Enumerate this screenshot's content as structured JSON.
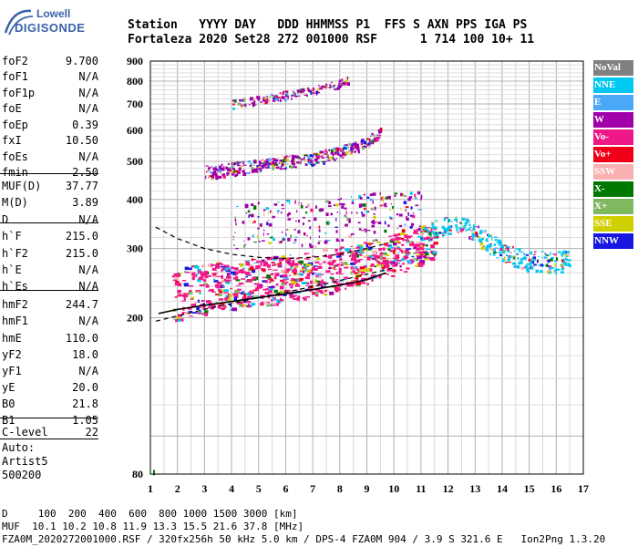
{
  "logo": {
    "line1": "Lowell",
    "line2": "DIGISONDE"
  },
  "header": {
    "line1": "Station   YYYY DAY   DDD HHMMSS P1  FFS S AXN PPS IGA PS",
    "line2": "Fortaleza 2020 Set28 272 001000 RSF      1 714 100 10+ 11"
  },
  "params": [
    {
      "k": "foF2",
      "v": "9.700"
    },
    {
      "k": "foF1",
      "v": "N/A"
    },
    {
      "k": "foF1p",
      "v": "N/A"
    },
    {
      "k": "foE",
      "v": "N/A"
    },
    {
      "k": "foEp",
      "v": "0.39"
    },
    {
      "k": "fxI",
      "v": "10.50"
    },
    {
      "k": "foEs",
      "v": "N/A"
    },
    {
      "k": "fmin",
      "v": "2.50"
    },
    {
      "k": "MUF(D)",
      "v": "37.77"
    },
    {
      "k": "M(D)",
      "v": "3.89"
    },
    {
      "k": "D",
      "v": "N/A"
    },
    {
      "k": "h`F",
      "v": "215.0"
    },
    {
      "k": "h`F2",
      "v": "215.0"
    },
    {
      "k": "h`E",
      "v": "N/A"
    },
    {
      "k": "h`Es",
      "v": "N/A"
    },
    {
      "k": "hmF2",
      "v": "244.7"
    },
    {
      "k": "hmF1",
      "v": "N/A"
    },
    {
      "k": "hmE",
      "v": "110.0"
    },
    {
      "k": "yF2",
      "v": "18.0"
    },
    {
      "k": "yF1",
      "v": "N/A"
    },
    {
      "k": "yE",
      "v": "20.0"
    },
    {
      "k": "B0",
      "v": "21.8"
    },
    {
      "k": "B1",
      "v": "1.05"
    },
    {
      "k": "C-level",
      "v": "22"
    }
  ],
  "auto": {
    "line1": "Auto:",
    "line2": "Artist5",
    "line3": "500200"
  },
  "legend": [
    {
      "label": "NoVal",
      "color": "#808080"
    },
    {
      "label": "NNE",
      "color": "#00c8f0"
    },
    {
      "label": "E",
      "color": "#4aa8f8"
    },
    {
      "label": "W",
      "color": "#a000a8"
    },
    {
      "label": "Vo-",
      "color": "#f01888"
    },
    {
      "label": "Vo+",
      "color": "#f00018"
    },
    {
      "label": "SSW",
      "color": "#f8b0b0"
    },
    {
      "label": "X-",
      "color": "#007800"
    },
    {
      "label": "X+",
      "color": "#80b860"
    },
    {
      "label": "SSE",
      "color": "#d0d000"
    },
    {
      "label": "NNW",
      "color": "#1818e0"
    }
  ],
  "footer": {
    "line1": "D     100  200  400  600  800 1000 1500 3000 [km]",
    "line2": "MUF  10.1 10.2 10.8 11.9 13.3 15.5 21.6 37.8 [MHz]",
    "line3": "FZA0M_2020272001000.RSF / 320fx256h 50 kHz 5.0 km / DPS-4 FZA0M 904 / 3.9 S 321.6 E   Ion2Png 1.3.20"
  },
  "chart_data": {
    "type": "scatter",
    "x": {
      "min": 1,
      "max": 17,
      "ticks": [
        1,
        2,
        3,
        4,
        5,
        6,
        7,
        8,
        9,
        10,
        11,
        12,
        13,
        14,
        15,
        16,
        17
      ]
    },
    "y": {
      "min": 80,
      "max": 900,
      "ticks": [
        80,
        200,
        300,
        400,
        500,
        600,
        700,
        800,
        900
      ],
      "scale": "log"
    },
    "grid": true,
    "series": [
      {
        "name": "O-trace F2 (heavy echoes)",
        "color": "#f01888",
        "points": [
          [
            1.8,
            230
          ],
          [
            2.5,
            238
          ],
          [
            3,
            240
          ],
          [
            3.5,
            243
          ],
          [
            4,
            245
          ],
          [
            4.5,
            248
          ],
          [
            5,
            250
          ],
          [
            5.5,
            252
          ],
          [
            6,
            255
          ],
          [
            6.5,
            258
          ],
          [
            7,
            262
          ],
          [
            7.5,
            266
          ],
          [
            8,
            270
          ],
          [
            8.5,
            275
          ],
          [
            9,
            280
          ],
          [
            9.5,
            285
          ],
          [
            10,
            292
          ],
          [
            10.5,
            300
          ],
          [
            11,
            310
          ],
          [
            11.5,
            320
          ]
        ]
      },
      {
        "name": "X-trace F2",
        "color": "#00c8f0",
        "points": [
          [
            11,
            330
          ],
          [
            11.5,
            338
          ],
          [
            12,
            345
          ],
          [
            12.5,
            350
          ],
          [
            13,
            330
          ],
          [
            13.5,
            310
          ],
          [
            14,
            295
          ],
          [
            14.5,
            285
          ],
          [
            15,
            280
          ],
          [
            15.5,
            278
          ],
          [
            16,
            278
          ],
          [
            16.5,
            280
          ]
        ]
      },
      {
        "name": "Spread F echoes",
        "color": "#a000a8",
        "points": [
          [
            4,
            340
          ],
          [
            5,
            350
          ],
          [
            6,
            355
          ],
          [
            7,
            350
          ],
          [
            8,
            360
          ],
          [
            9,
            370
          ],
          [
            10,
            380
          ],
          [
            11,
            380
          ]
        ]
      },
      {
        "name": "Multiple hop 1",
        "color": "#a000a8",
        "points": [
          [
            3,
            470
          ],
          [
            4,
            480
          ],
          [
            5,
            490
          ],
          [
            6,
            500
          ],
          [
            7,
            510
          ],
          [
            8,
            530
          ],
          [
            9,
            560
          ],
          [
            9.5,
            600
          ]
        ]
      },
      {
        "name": "Multiple hop 2",
        "color": "#a000a8",
        "points": [
          [
            4,
            700
          ],
          [
            5,
            720
          ],
          [
            6,
            740
          ],
          [
            7,
            760
          ],
          [
            8,
            790
          ],
          [
            8.3,
            810
          ]
        ]
      }
    ],
    "profile": {
      "name": "Profile",
      "points": [
        [
          1.3,
          205
        ],
        [
          2,
          210
        ],
        [
          3,
          215
        ],
        [
          4,
          220
        ],
        [
          5,
          225
        ],
        [
          6,
          230
        ],
        [
          7,
          236
        ],
        [
          8,
          242
        ],
        [
          9,
          250
        ],
        [
          9.7,
          260
        ]
      ]
    },
    "dashed_curve": [
      [
        1.2,
        340
      ],
      [
        2,
        318
      ],
      [
        3,
        300
      ],
      [
        4,
        290
      ],
      [
        5,
        285
      ],
      [
        6,
        283
      ],
      [
        7,
        285
      ],
      [
        8,
        290
      ],
      [
        9,
        300
      ],
      [
        9.8,
        310
      ]
    ],
    "dashed_line": [
      [
        1.2,
        196
      ],
      [
        3,
        210
      ],
      [
        5,
        225
      ],
      [
        7,
        240
      ],
      [
        9,
        258
      ],
      [
        10,
        268
      ]
    ]
  }
}
